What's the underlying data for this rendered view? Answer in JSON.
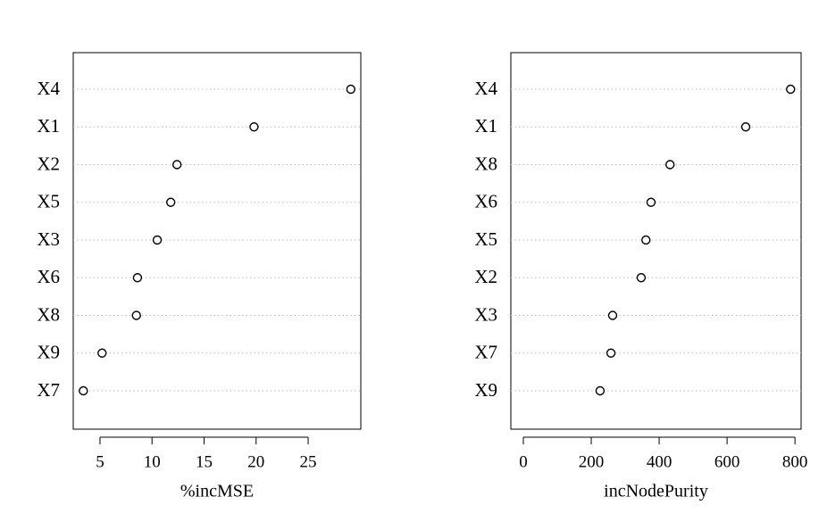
{
  "chart_data": [
    {
      "type": "dot",
      "xlabel": "%incMSE",
      "categories": [
        "X4",
        "X1",
        "X2",
        "X5",
        "X3",
        "X6",
        "X8",
        "X9",
        "X7"
      ],
      "values": [
        29.1,
        19.8,
        12.4,
        11.8,
        10.5,
        8.6,
        8.5,
        5.2,
        3.4
      ],
      "xlim": [
        2.43,
        30.06
      ],
      "xticks": [
        5,
        10,
        15,
        20,
        25
      ],
      "grid": true
    },
    {
      "type": "dot",
      "xlabel": "incNodePurity",
      "categories": [
        "X4",
        "X1",
        "X8",
        "X6",
        "X5",
        "X2",
        "X3",
        "X7",
        "X9"
      ],
      "values": [
        787,
        655,
        432,
        376,
        361,
        347,
        263,
        258,
        226
      ],
      "xlim": [
        -36.8,
        818
      ],
      "xticks": [
        0,
        200,
        400,
        600,
        800
      ],
      "grid": true
    }
  ]
}
